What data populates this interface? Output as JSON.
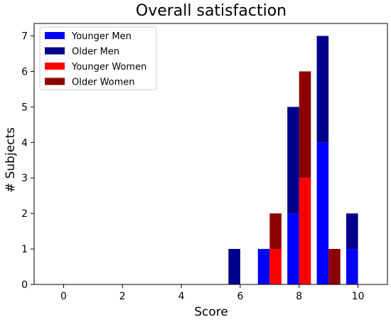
{
  "chart_data": {
    "type": "bar",
    "stacked": true,
    "title": "Overall satisfaction",
    "xlabel": "Score",
    "ylabel": "# Subjects",
    "xlim": [
      -1,
      11
    ],
    "ylim": [
      0,
      7.35
    ],
    "xticks": [
      0,
      2,
      4,
      6,
      8,
      10
    ],
    "yticks": [
      0,
      1,
      2,
      3,
      4,
      5,
      6,
      7
    ],
    "grid": false,
    "legend_position": "top-left",
    "groups": [
      {
        "name": "Men",
        "offset": -0.2,
        "stack": [
          {
            "name": "Younger Men",
            "color": "#0000ff",
            "values": {
              "7": 1,
              "8": 2,
              "9": 4,
              "10": 1
            }
          },
          {
            "name": "Older Men",
            "color": "#00008b",
            "values": {
              "6": 1,
              "8": 3,
              "9": 3,
              "10": 1
            }
          }
        ]
      },
      {
        "name": "Women",
        "offset": 0.2,
        "stack": [
          {
            "name": "Younger Women",
            "color": "#ff0000",
            "values": {
              "7": 1,
              "8": 3
            }
          },
          {
            "name": "Older Women",
            "color": "#8b0000",
            "values": {
              "7": 1,
              "8": 3,
              "9": 1
            }
          }
        ]
      }
    ],
    "legend": [
      "Younger Men",
      "Older Men",
      "Younger Women",
      "Older Women"
    ]
  }
}
